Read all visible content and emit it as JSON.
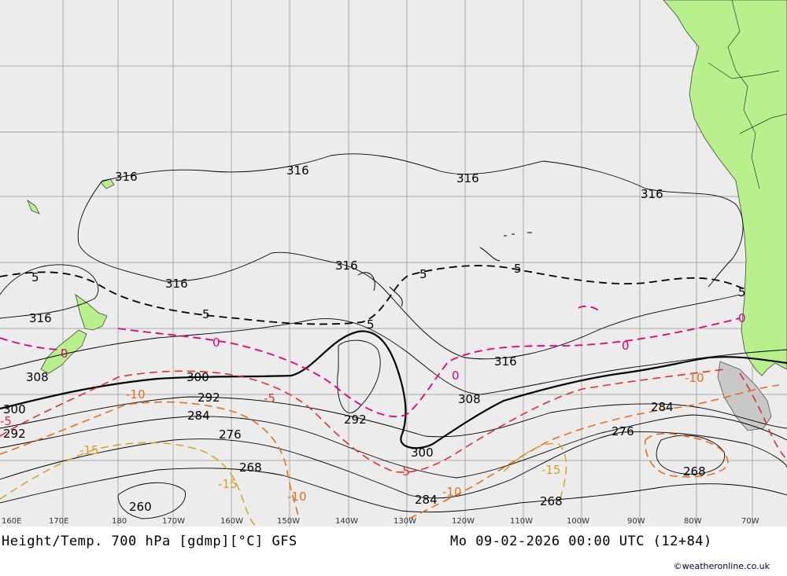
{
  "title": {
    "left": "Height/Temp. 700 hPa [gdmp][°C] GFS",
    "right": "Mo 09-02-2026 00:00 UTC (12+84)"
  },
  "credit": "©weatheronline.co.uk",
  "longitude_labels": [
    "160E",
    "170E",
    "180",
    "170W",
    "160W",
    "150W",
    "140W",
    "130W",
    "120W",
    "110W",
    "100W",
    "90W",
    "80W",
    "70W"
  ],
  "height_labels": [
    "316",
    "316",
    "316",
    "316",
    "316",
    "316",
    "316",
    "316",
    "308",
    "308",
    "300",
    "300",
    "300",
    "292",
    "292",
    "292",
    "284",
    "284",
    "284",
    "276",
    "276",
    "268",
    "268",
    "268",
    "260"
  ],
  "temp_labels": [
    "5",
    "5",
    "5",
    "5",
    "5",
    "5",
    "0",
    "0",
    "0",
    "0",
    "0",
    "-5",
    "-5",
    "-5",
    "-10",
    "-10",
    "-10",
    "-10",
    "-15",
    "-15",
    "-15"
  ],
  "colors": {
    "ocean": "#ececec",
    "land": "#b8f08c",
    "grid": "#aaaaaa",
    "height_contour": "#000000",
    "temp_positive": "#000000",
    "temp_zero": "#e0007a",
    "temp_minus5": "#e03030",
    "temp_minus10": "#e07020",
    "temp_minus15": "#d8a020"
  }
}
